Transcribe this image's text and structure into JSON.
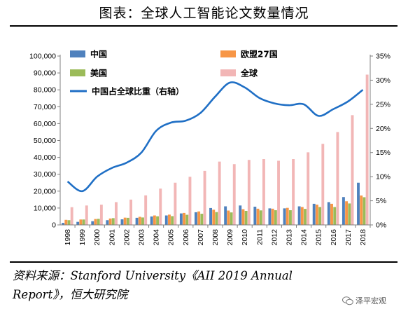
{
  "header": {
    "title": "图表：全球人工智能论文数量情况"
  },
  "source": {
    "line1": "资料来源：Stanford University《AII 2019 Annual",
    "line2": "Report》，恒大研究院"
  },
  "watermark": {
    "text": "泽平宏观",
    "icon": "wechat-chat-icon"
  },
  "colors": {
    "china": "#4f81bd",
    "eu27": "#f79646",
    "usa": "#9bbb59",
    "world": "#f2b6b6",
    "share_line": "#1f6fc5"
  },
  "chart_data": {
    "type": "bar",
    "title": "",
    "categories": [
      "1998",
      "1999",
      "2000",
      "2001",
      "2002",
      "2003",
      "2004",
      "2005",
      "2006",
      "2007",
      "2008",
      "2009",
      "2010",
      "2011",
      "2012",
      "2013",
      "2014",
      "2015",
      "2016",
      "2017",
      "2018"
    ],
    "ylim": [
      0,
      100000
    ],
    "y_ticks": [
      "0",
      "10,000",
      "20,000",
      "30,000",
      "40,000",
      "50,000",
      "60,000",
      "70,000",
      "80,000",
      "90,000",
      "100,000"
    ],
    "y2lim": [
      0,
      35
    ],
    "y2_ticks": [
      "0%",
      "5%",
      "10%",
      "15%",
      "20%",
      "25%",
      "30%",
      "35%"
    ],
    "legend_position": "top-left",
    "series": [
      {
        "name": "中国",
        "type": "bar",
        "values": [
          1200,
          1800,
          2200,
          2800,
          3300,
          4200,
          5000,
          5600,
          6800,
          7500,
          10000,
          11000,
          11500,
          10800,
          9800,
          9800,
          11000,
          12500,
          13500,
          16500,
          25000
        ]
      },
      {
        "name": "欧盟27国",
        "type": "bar",
        "values": [
          3000,
          3200,
          3500,
          3800,
          4300,
          4800,
          5600,
          6100,
          7100,
          8000,
          9000,
          8500,
          9300,
          9600,
          9600,
          10100,
          10600,
          12000,
          12500,
          14000,
          17400
        ]
      },
      {
        "name": "美国",
        "type": "bar",
        "values": [
          2800,
          3200,
          3600,
          4000,
          4200,
          4400,
          5100,
          5200,
          6000,
          6600,
          7600,
          7400,
          8300,
          8600,
          8700,
          8700,
          9500,
          10600,
          10600,
          12700,
          16400
        ]
      },
      {
        "name": "全球",
        "type": "bar",
        "values": [
          10500,
          11500,
          12000,
          13500,
          15000,
          17500,
          21500,
          25000,
          28500,
          32000,
          37500,
          36000,
          38500,
          39000,
          38000,
          39000,
          43000,
          48000,
          55000,
          65000,
          89000
        ]
      },
      {
        "name": "中国占全球比重（右轴）",
        "type": "line",
        "axis": "right",
        "values": [
          9.0,
          7.0,
          10.0,
          11.8,
          12.9,
          15.0,
          19.5,
          21.2,
          21.6,
          23.2,
          26.6,
          29.5,
          28.5,
          26.3,
          25.2,
          24.8,
          25.0,
          22.6,
          24.0,
          25.6,
          28.0
        ]
      }
    ]
  }
}
